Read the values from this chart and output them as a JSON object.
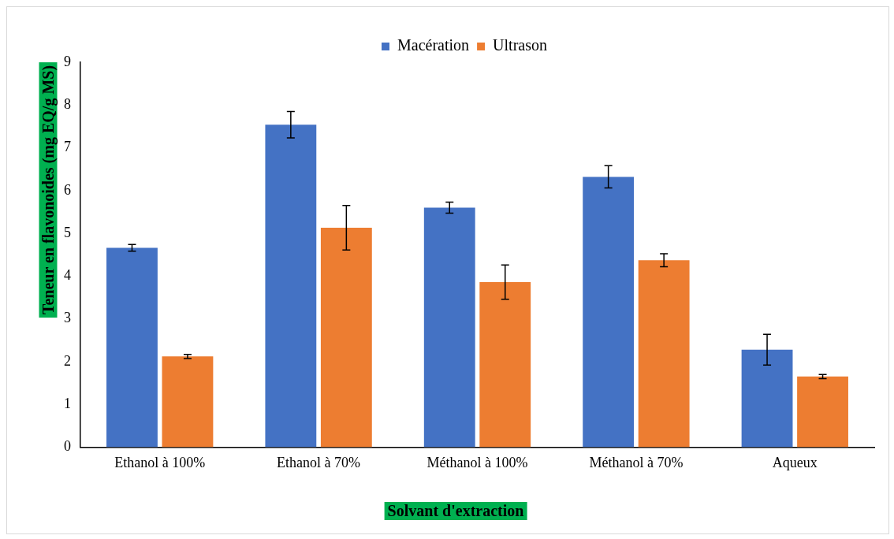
{
  "chart_data": {
    "type": "bar",
    "xlabel": "Solvant d'extraction",
    "ylabel": "Teneur en flavonoides (mg EQ/g MS)",
    "categories": [
      "Ethanol à 100%",
      "Ethanol à 70%",
      "Méthanol à 100%",
      "Méthanol à 70%",
      "Aqueux"
    ],
    "series": [
      {
        "name": "Macération",
        "color": "#4472c4",
        "values": [
          4.66,
          7.54,
          5.6,
          6.32,
          2.28
        ],
        "errors": [
          0.08,
          0.31,
          0.13,
          0.26,
          0.36
        ]
      },
      {
        "name": "Ultrason",
        "color": "#ed7d31",
        "values": [
          2.12,
          5.13,
          3.86,
          4.37,
          1.65
        ],
        "errors": [
          0.05,
          0.52,
          0.4,
          0.15,
          0.05
        ]
      }
    ],
    "ylim": [
      0,
      9
    ],
    "yticks": [
      0,
      1,
      2,
      3,
      4,
      5,
      6,
      7,
      8,
      9
    ],
    "grid": false,
    "legend": "top"
  }
}
